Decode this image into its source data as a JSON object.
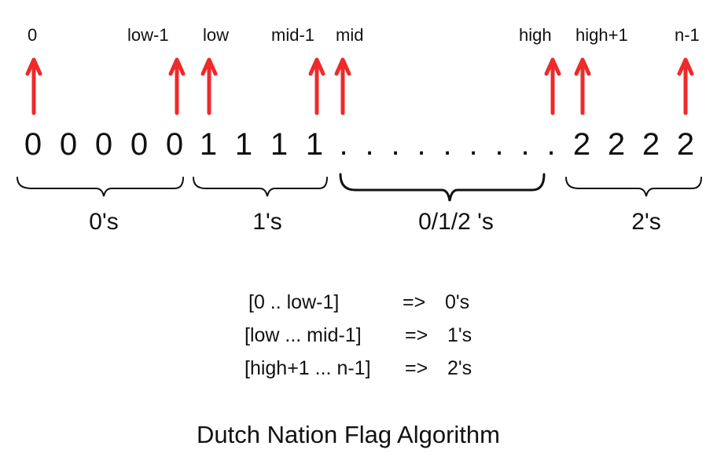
{
  "pointers": [
    "0",
    "low-1",
    "low",
    "mid-1",
    "mid",
    "high",
    "high+1",
    "n-1"
  ],
  "array_digits": [
    "0",
    "0",
    "0",
    "0",
    "0",
    "1",
    "1",
    "1",
    "1",
    "2",
    "2",
    "2",
    "2"
  ],
  "ellipsis_dot": ".",
  "groups": [
    "0's",
    "1's",
    "0/1/2 's",
    "2's"
  ],
  "ranges": [
    {
      "range": "[0 .. low-1]",
      "arrow": "=>",
      "result": "0's"
    },
    {
      "range": "[low ... mid-1]",
      "arrow": "=>",
      "result": "1's"
    },
    {
      "range": "[high+1 ... n-1]",
      "arrow": "=>",
      "result": "2's"
    }
  ],
  "title": "Dutch Nation Flag Algorithm",
  "colors": {
    "arrow": "#ee2a2a",
    "text": "#111111"
  }
}
